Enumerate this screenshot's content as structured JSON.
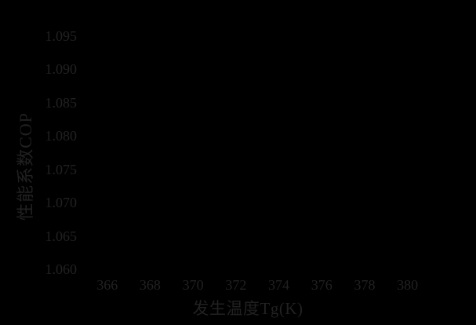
{
  "colors": {
    "background": "#000000",
    "text": "#212121"
  },
  "chart_data": {
    "type": "line",
    "title": "",
    "xlabel": "发生温度Tg(K)",
    "ylabel": "性能系数COP",
    "x_tick_labels": [
      "366",
      "368",
      "370",
      "372",
      "374",
      "376",
      "378",
      "380"
    ],
    "y_tick_labels": [
      "1.060",
      "1.065",
      "1.070",
      "1.075",
      "1.080",
      "1.085",
      "1.090",
      "1.095"
    ],
    "xlim": [
      365,
      381
    ],
    "ylim": [
      1.0575,
      1.0975
    ],
    "grid": false,
    "legend": null,
    "series": []
  }
}
